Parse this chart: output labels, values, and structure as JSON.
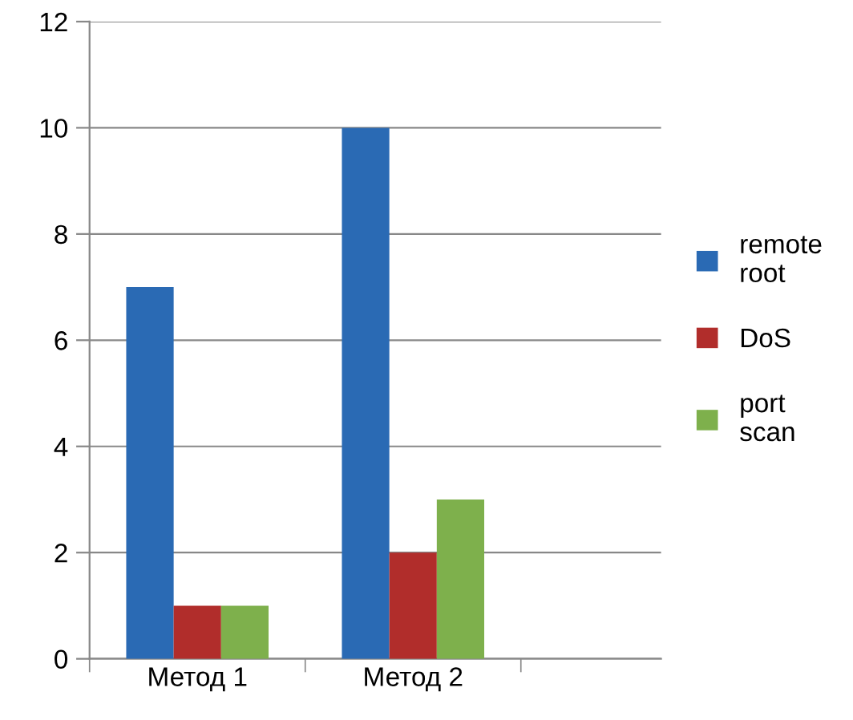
{
  "chart_data": {
    "type": "bar",
    "categories": [
      "Метод 1",
      "Метод 2",
      null
    ],
    "series": [
      {
        "name": "remote root",
        "color": "#2a6ab4",
        "values": [
          7,
          10,
          null
        ]
      },
      {
        "name": "DoS",
        "color": "#b12d2b",
        "values": [
          1,
          2,
          null
        ]
      },
      {
        "name": "port scan",
        "color": "#7eb04c",
        "values": [
          1,
          3,
          null
        ]
      }
    ],
    "ylim": [
      0,
      12
    ],
    "yticks": [
      0,
      2,
      4,
      6,
      8,
      10,
      12
    ],
    "grid": "y",
    "legend": "right"
  }
}
